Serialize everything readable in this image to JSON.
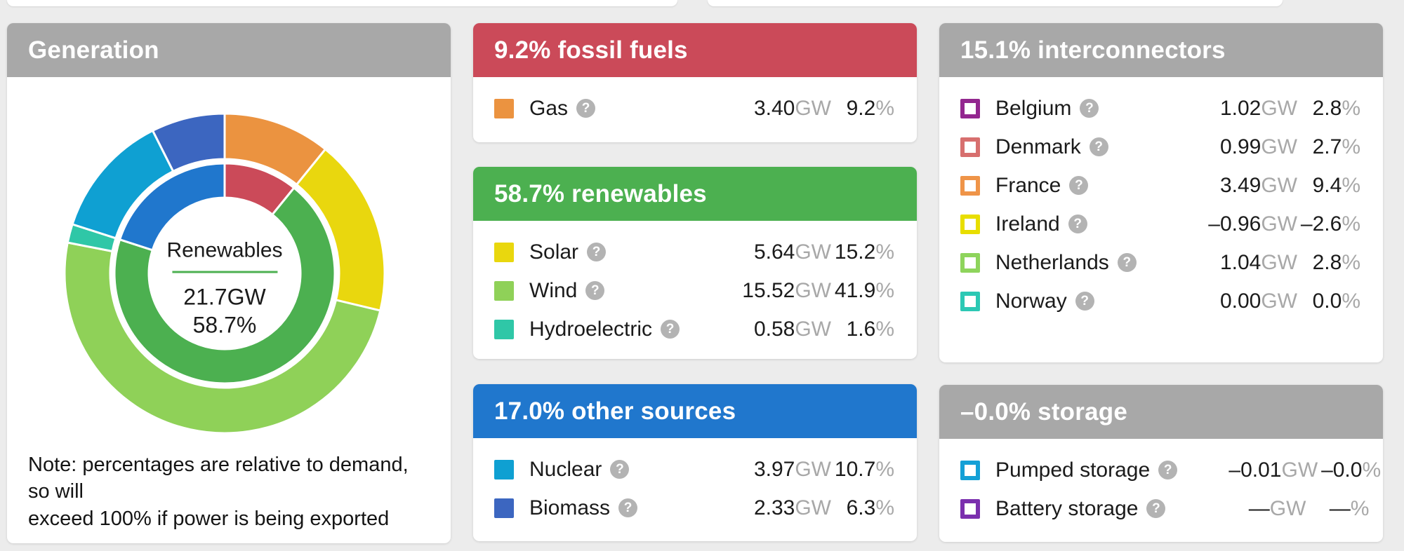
{
  "page": {
    "background": "#ececec",
    "card_color": "#ffffff"
  },
  "generation": {
    "title": "Generation",
    "header_color": "#a8a8a8",
    "center_label": "Renewables",
    "center_value": "21.7GW",
    "center_percent": "58.7%",
    "center_line_color": "#4cb050",
    "note": "Note: percentages are relative to demand, so will\nexceed 100% if power is being exported"
  },
  "chart_data": {
    "type": "pie",
    "subtype": "two-ring-donut",
    "title": "Generation",
    "center": {
      "label": "Renewables",
      "value_gw": 21.7,
      "percent": 58.7
    },
    "note": "percentages are relative to demand",
    "rings": [
      {
        "name": "sources",
        "position": "outer",
        "slices": [
          {
            "label": "Gas",
            "value_gw": 3.4,
            "percent": 9.2,
            "color": "#eb9340"
          },
          {
            "label": "Solar",
            "value_gw": 5.64,
            "percent": 15.2,
            "color": "#e9d70e"
          },
          {
            "label": "Wind",
            "value_gw": 15.52,
            "percent": 41.9,
            "color": "#8fd158"
          },
          {
            "label": "Hydroelectric",
            "value_gw": 0.58,
            "percent": 1.6,
            "color": "#2fc7a7"
          },
          {
            "label": "Nuclear",
            "value_gw": 3.97,
            "percent": 10.7,
            "color": "#0fa0d2"
          },
          {
            "label": "Biomass",
            "value_gw": 2.33,
            "percent": 6.3,
            "color": "#3c66c0"
          }
        ]
      },
      {
        "name": "categories",
        "position": "inner",
        "slices": [
          {
            "label": "Fossil fuels",
            "percent": 9.2,
            "color": "#cb4a59"
          },
          {
            "label": "Renewables",
            "percent": 58.7,
            "color": "#4cb050"
          },
          {
            "label": "Other sources",
            "percent": 17.0,
            "color": "#2077cd"
          }
        ]
      }
    ]
  },
  "panels": {
    "fossil": {
      "title": "9.2% fossil fuels",
      "header_color": "#cb4a59",
      "rows": [
        {
          "label": "Gas",
          "style": "filled",
          "color": "#eb9340",
          "value": "3.40",
          "unit": "GW",
          "percent": "9.2",
          "percent_unit": "%"
        }
      ]
    },
    "renewables": {
      "title": "58.7% renewables",
      "header_color": "#4cb050",
      "rows": [
        {
          "label": "Solar",
          "style": "filled",
          "color": "#e9d70e",
          "value": "5.64",
          "unit": "GW",
          "percent": "15.2",
          "percent_unit": "%"
        },
        {
          "label": "Wind",
          "style": "filled",
          "color": "#8fd158",
          "value": "15.52",
          "unit": "GW",
          "percent": "41.9",
          "percent_unit": "%"
        },
        {
          "label": "Hydroelectric",
          "style": "filled",
          "color": "#2fc7a7",
          "value": "0.58",
          "unit": "GW",
          "percent": "1.6",
          "percent_unit": "%"
        }
      ]
    },
    "other": {
      "title": "17.0% other sources",
      "header_color": "#2077cd",
      "rows": [
        {
          "label": "Nuclear",
          "style": "filled",
          "color": "#0fa0d2",
          "value": "3.97",
          "unit": "GW",
          "percent": "10.7",
          "percent_unit": "%"
        },
        {
          "label": "Biomass",
          "style": "filled",
          "color": "#3c66c0",
          "value": "2.33",
          "unit": "GW",
          "percent": "6.3",
          "percent_unit": "%"
        }
      ]
    },
    "interconnectors": {
      "title": "15.1% interconnectors",
      "header_color": "#a8a8a8",
      "rows": [
        {
          "label": "Belgium",
          "style": "outline",
          "color": "#93278f",
          "value": "1.02",
          "unit": "GW",
          "percent": "2.8",
          "percent_unit": "%"
        },
        {
          "label": "Denmark",
          "style": "outline",
          "color": "#d76f6e",
          "value": "0.99",
          "unit": "GW",
          "percent": "2.7",
          "percent_unit": "%"
        },
        {
          "label": "France",
          "style": "outline",
          "color": "#ef9448",
          "value": "3.49",
          "unit": "GW",
          "percent": "9.4",
          "percent_unit": "%"
        },
        {
          "label": "Ireland",
          "style": "outline",
          "color": "#e8de00",
          "value": "–0.96",
          "unit": "GW",
          "percent": "–2.6",
          "percent_unit": "%"
        },
        {
          "label": "Netherlands",
          "style": "outline",
          "color": "#8ed45c",
          "value": "1.04",
          "unit": "GW",
          "percent": "2.8",
          "percent_unit": "%"
        },
        {
          "label": "Norway",
          "style": "outline",
          "color": "#2cc8b4",
          "value": "0.00",
          "unit": "GW",
          "percent": "0.0",
          "percent_unit": "%"
        }
      ]
    },
    "storage": {
      "title": "–0.0% storage",
      "header_color": "#a8a8a8",
      "rows": [
        {
          "label": "Pumped storage",
          "style": "outline",
          "color": "#14a0d6",
          "value": "–0.01",
          "unit": "GW",
          "percent": "–0.0",
          "percent_unit": "%"
        },
        {
          "label": "Battery storage",
          "style": "outline",
          "color": "#7b2fae",
          "value": "—",
          "unit": "GW",
          "percent": "—",
          "percent_unit": "%"
        }
      ]
    }
  },
  "icons": {
    "help_icon_glyph": "?",
    "help_icon_color": "#b3b3b3"
  }
}
